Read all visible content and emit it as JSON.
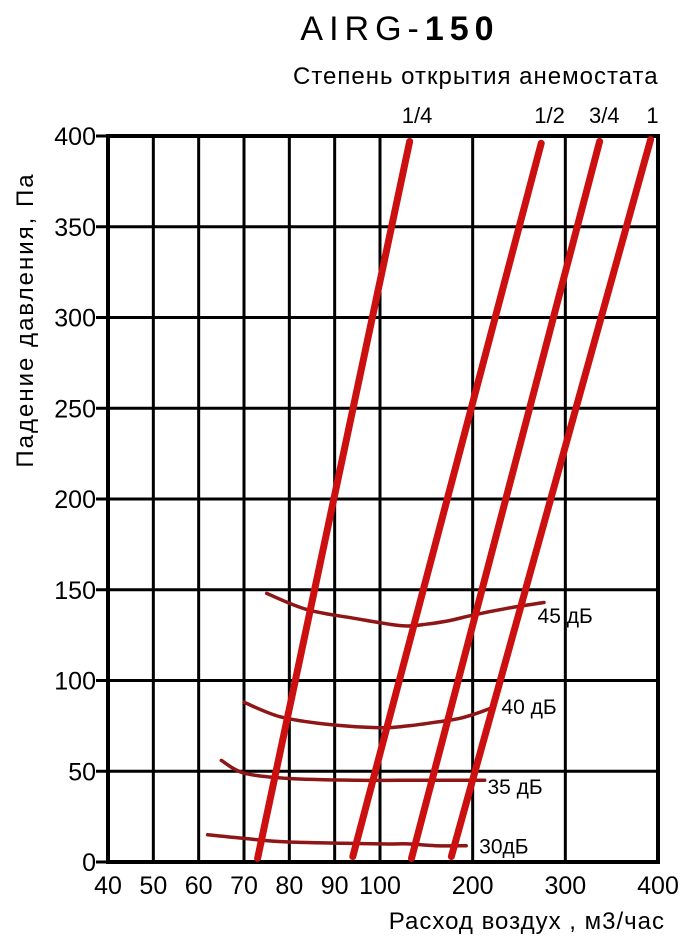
{
  "title": {
    "prefix": "AIRG-",
    "suffix": "150"
  },
  "chart_data": {
    "type": "line",
    "title": "AIRG-150",
    "subtitle": "Степень открытия анемостата",
    "xlabel": "Расход воздух , м3/час",
    "ylabel": "Падение давления, Па",
    "xlim": [
      40,
      400
    ],
    "ylim": [
      0,
      400
    ],
    "x_ticks": [
      40,
      50,
      60,
      70,
      80,
      90,
      100,
      200,
      300,
      400
    ],
    "y_ticks": [
      0,
      50,
      100,
      150,
      200,
      250,
      300,
      350,
      400
    ],
    "x_scale": "segmented log-like: 40-100 linear, 100-400 linear compressed",
    "grid": true,
    "legend_position": "labels-on-plot",
    "colors": {
      "opening_lines": "#cc1010",
      "noise_curves": "#8f1616",
      "grid": "#000000",
      "text": "#000000"
    },
    "opening_lines": [
      {
        "label": "1/4",
        "points": [
          [
            73,
            2
          ],
          [
            132,
            397
          ]
        ],
        "label_x": 140
      },
      {
        "label": "1/2",
        "points": [
          [
            94,
            3
          ],
          [
            274,
            396
          ]
        ],
        "label_x": 283
      },
      {
        "label": "3/4",
        "points": [
          [
            134,
            2
          ],
          [
            337,
            397
          ]
        ],
        "label_x": 342
      },
      {
        "label": "1",
        "points": [
          [
            177,
            3
          ],
          [
            392,
            398
          ]
        ],
        "label_x": 394
      }
    ],
    "noise_curves": [
      {
        "label": "45 дБ",
        "points": [
          [
            75,
            148
          ],
          [
            84,
            139
          ],
          [
            95,
            134
          ],
          [
            110,
            131
          ],
          [
            130,
            130
          ],
          [
            150,
            131
          ],
          [
            175,
            133
          ],
          [
            200,
            136
          ],
          [
            240,
            140
          ],
          [
            277,
            143
          ]
        ],
        "label_at": [
          270,
          136
        ]
      },
      {
        "label": "40 дБ",
        "points": [
          [
            70,
            88
          ],
          [
            78,
            80
          ],
          [
            88,
            76
          ],
          [
            100,
            74
          ],
          [
            130,
            75
          ],
          [
            160,
            77
          ],
          [
            185,
            79
          ],
          [
            205,
            82
          ],
          [
            221,
            85
          ]
        ],
        "label_at": [
          231,
          86
        ]
      },
      {
        "label": "35 дБ",
        "points": [
          [
            65,
            56
          ],
          [
            70,
            49
          ],
          [
            80,
            46
          ],
          [
            95,
            45
          ],
          [
            120,
            45
          ],
          [
            150,
            45
          ],
          [
            180,
            45
          ],
          [
            213,
            45
          ]
        ],
        "label_at": [
          216,
          42
        ]
      },
      {
        "label": "30дБ",
        "points": [
          [
            62,
            15
          ],
          [
            70,
            13
          ],
          [
            80,
            11
          ],
          [
            100,
            10
          ],
          [
            130,
            10
          ],
          [
            160,
            9
          ],
          [
            193,
            9
          ]
        ],
        "label_at": [
          207,
          9
        ]
      }
    ]
  }
}
